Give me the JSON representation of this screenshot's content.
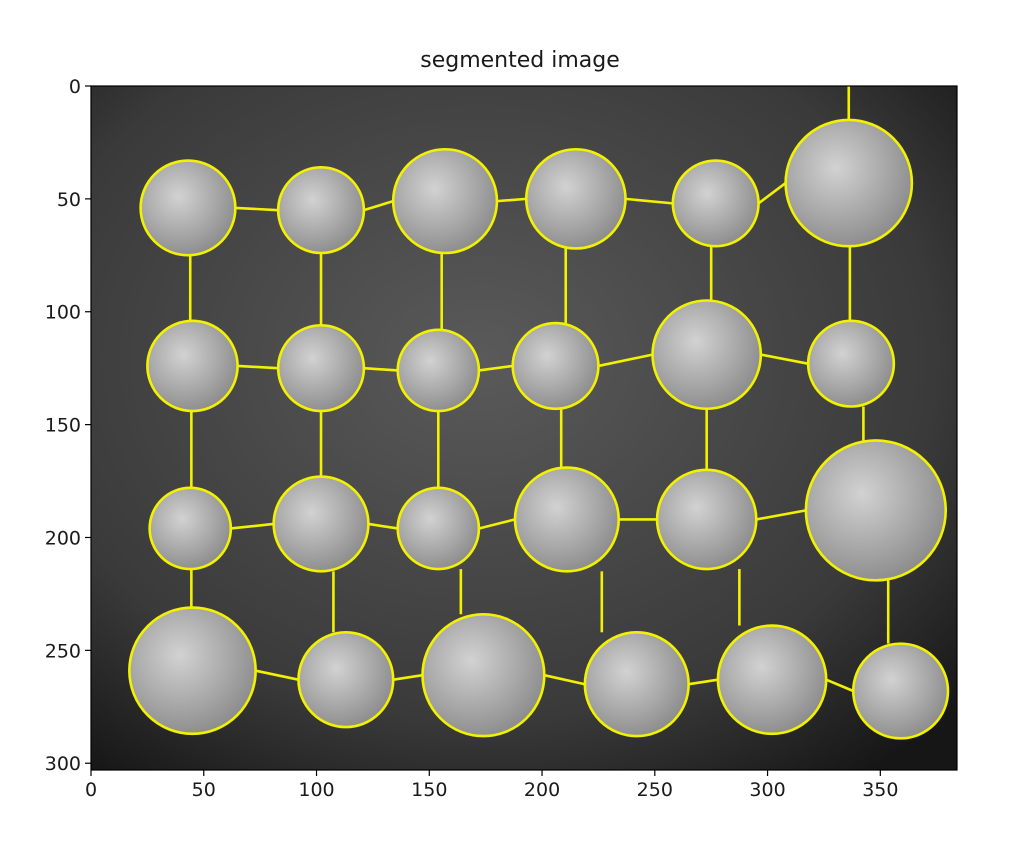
{
  "figure": {
    "title": "segmented image"
  },
  "axes": {
    "x_ticks": [
      "0",
      "50",
      "100",
      "150",
      "200",
      "250",
      "300",
      "350"
    ],
    "y_ticks": [
      "0",
      "50",
      "100",
      "150",
      "200",
      "250",
      "300"
    ],
    "x_range": [
      0,
      384
    ],
    "y_range": [
      0,
      303
    ],
    "y_inverted": true
  },
  "image": {
    "description_colormap": "gray",
    "overlay_color": "#f2f200",
    "background_color": "#3a3a3a",
    "coin_color": "#b5b5b5",
    "coins": [
      {
        "cx": 43,
        "cy": 54,
        "r": 21
      },
      {
        "cx": 102,
        "cy": 55,
        "r": 19
      },
      {
        "cx": 157,
        "cy": 51,
        "r": 23
      },
      {
        "cx": 215,
        "cy": 50,
        "r": 22
      },
      {
        "cx": 277,
        "cy": 52,
        "r": 19
      },
      {
        "cx": 336,
        "cy": 43,
        "r": 28
      },
      {
        "cx": 45,
        "cy": 124,
        "r": 20
      },
      {
        "cx": 102,
        "cy": 125,
        "r": 19
      },
      {
        "cx": 154,
        "cy": 126,
        "r": 18
      },
      {
        "cx": 206,
        "cy": 124,
        "r": 19
      },
      {
        "cx": 273,
        "cy": 119,
        "r": 24
      },
      {
        "cx": 337,
        "cy": 123,
        "r": 19
      },
      {
        "cx": 44,
        "cy": 196,
        "r": 18
      },
      {
        "cx": 102,
        "cy": 194,
        "r": 21
      },
      {
        "cx": 154,
        "cy": 196,
        "r": 18
      },
      {
        "cx": 211,
        "cy": 192,
        "r": 23
      },
      {
        "cx": 273,
        "cy": 192,
        "r": 22
      },
      {
        "cx": 348,
        "cy": 188,
        "r": 31
      },
      {
        "cx": 45,
        "cy": 259,
        "r": 28
      },
      {
        "cx": 113,
        "cy": 263,
        "r": 21
      },
      {
        "cx": 174,
        "cy": 261,
        "r": 27
      },
      {
        "cx": 242,
        "cy": 265,
        "r": 23
      },
      {
        "cx": 302,
        "cy": 263,
        "r": 24
      },
      {
        "cx": 359,
        "cy": 268,
        "r": 21
      }
    ]
  }
}
